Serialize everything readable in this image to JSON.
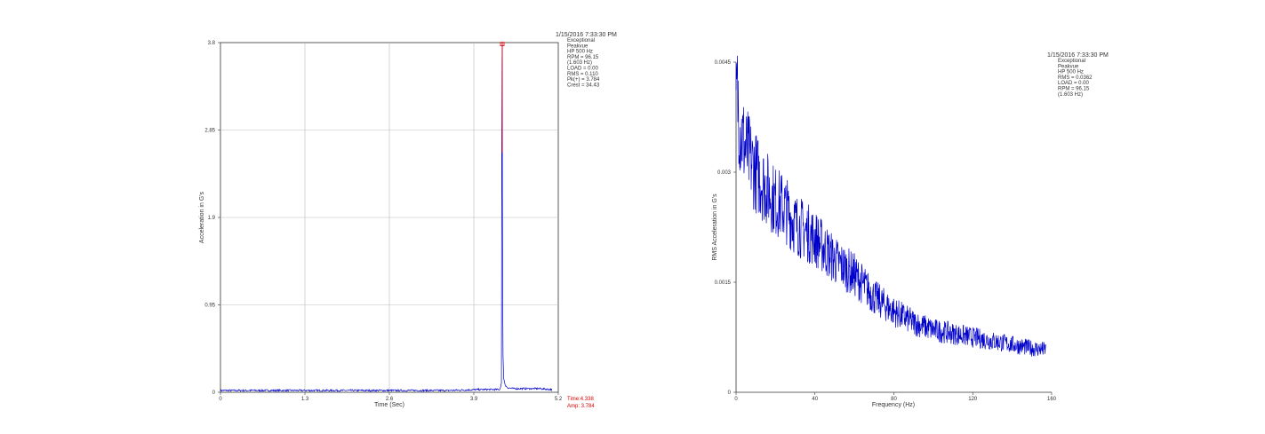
{
  "chart_data": [
    {
      "type": "line",
      "timestamp": "1/15/2016 7:33:30 PM",
      "info_lines": [
        "Exceptional",
        "Peakvue",
        "HP 500 Hz",
        "RPM = 96.15",
        "(1.603 Hz)",
        "LOAD = 0.00",
        "RMS = 0.110",
        "Pk(+) = 3.784",
        "Crest = 34.43"
      ],
      "xlabel": "Time (Sec)",
      "ylabel": "Acceleration in G's",
      "xlim": [
        0,
        5.2
      ],
      "ylim": [
        0,
        3.8
      ],
      "xticks": [
        0,
        1.3,
        2.6,
        3.9,
        5.2
      ],
      "xtick_labels": [
        "0",
        "1.3",
        "2.6",
        "3.9",
        "5.2"
      ],
      "yticks": [
        0,
        0.95,
        1.9,
        2.85,
        3.8
      ],
      "ytick_labels": [
        "0",
        "0.95",
        "1.9",
        "2.85",
        "3.8"
      ],
      "grid": true,
      "series": [
        {
          "color": "#0000cc",
          "x": [
            0,
            0.5,
            1.0,
            1.5,
            2.0,
            2.5,
            3.0,
            3.5,
            4.0,
            4.3,
            4.325,
            4.33,
            4.335,
            4.338,
            4.34,
            4.345,
            4.35,
            4.36,
            4.38,
            4.42,
            4.5,
            4.7,
            4.9,
            5.1
          ],
          "y": [
            0.02,
            0.02,
            0.02,
            0.02,
            0.02,
            0.02,
            0.02,
            0.02,
            0.03,
            0.03,
            0.1,
            2.6,
            3.6,
            3.784,
            2.2,
            1.0,
            0.4,
            0.15,
            0.08,
            0.05,
            0.04,
            0.04,
            0.04,
            0.03
          ]
        }
      ],
      "cursor": {
        "x": 4.338,
        "y": 3.784,
        "time_label": "Time:4.338",
        "amp_label": "Amp: 3.784",
        "color": "#e00000"
      }
    },
    {
      "type": "line",
      "timestamp": "1/15/2016 7:33:30 PM",
      "info_lines": [
        "Exceptional",
        "Peakvue",
        "HP 500 Hz",
        "RMS = 0.0362",
        "LOAD = 0.00",
        "RPM = 96.15",
        "(1.603 Hz)"
      ],
      "xlabel": "Frequency (Hz)",
      "ylabel": "RMS Acceleration in G's",
      "xlim": [
        0,
        160
      ],
      "ylim": [
        0,
        0.0045
      ],
      "xticks": [
        0,
        40,
        80,
        120,
        160
      ],
      "xtick_labels": [
        "0",
        "40",
        "80",
        "120",
        "160"
      ],
      "yticks": [
        0,
        0.0015,
        0.003,
        0.0045
      ],
      "ytick_labels": [
        "0",
        "0.0015",
        "0.003",
        "0.0045"
      ],
      "grid": false,
      "series": [
        {
          "color": "#0000cc",
          "x": [
            0,
            0.5,
            1,
            2,
            5,
            10,
            15,
            20,
            25,
            30,
            40,
            50,
            60,
            70,
            80,
            90,
            100,
            110,
            120,
            130,
            140,
            150,
            157
          ],
          "y": [
            0.0038,
            0.0041,
            0.004,
            0.0036,
            0.0033,
            0.003,
            0.0028,
            0.0026,
            0.0025,
            0.0023,
            0.0021,
            0.0018,
            0.0016,
            0.0013,
            0.0011,
            0.00095,
            0.00085,
            0.0008,
            0.00075,
            0.0007,
            0.00065,
            0.0006,
            0.00058
          ]
        }
      ]
    }
  ]
}
